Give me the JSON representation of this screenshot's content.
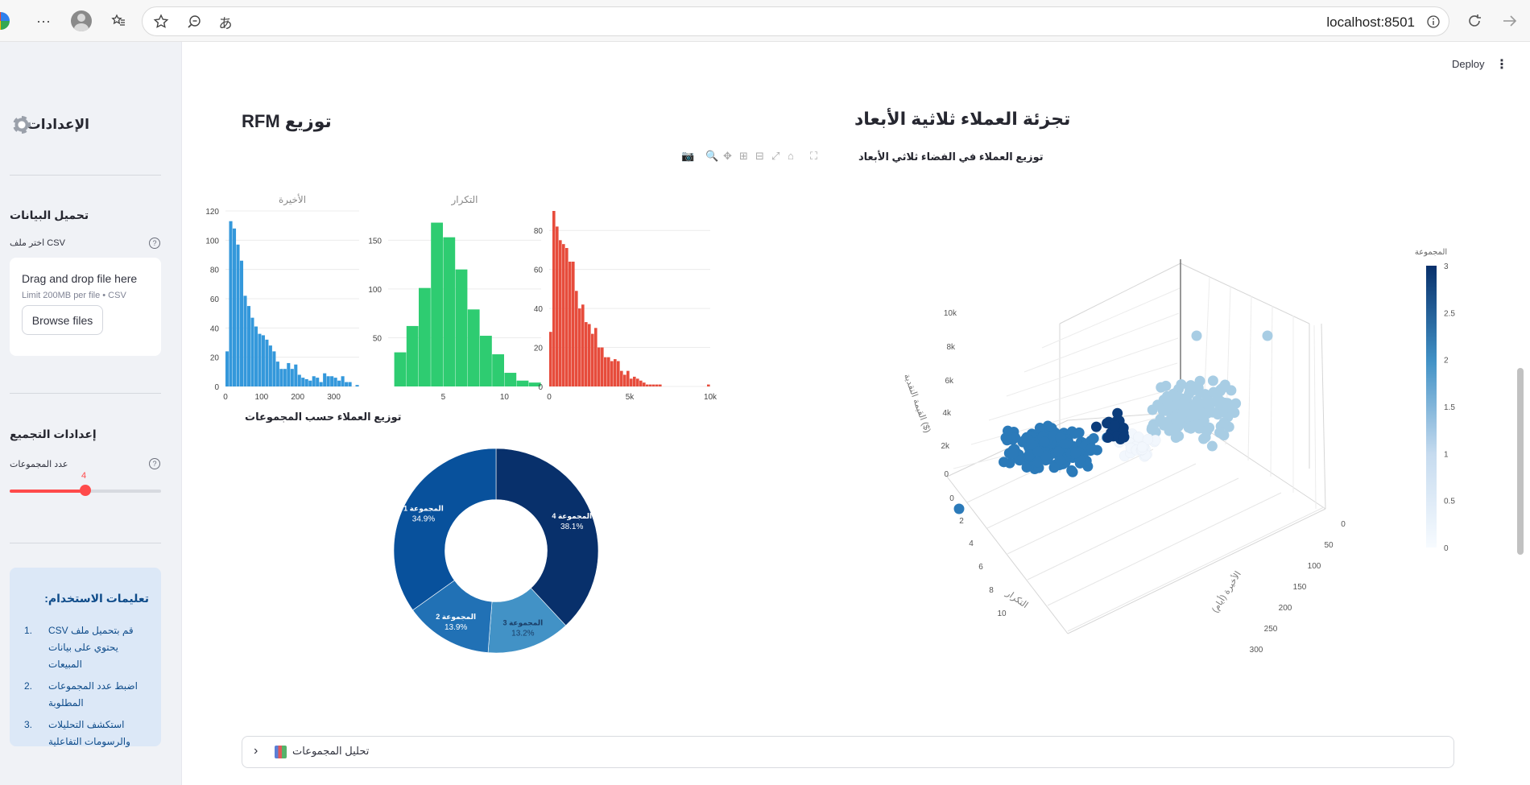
{
  "browser": {
    "url": "localhost:8501",
    "icons": [
      "more-icon",
      "profile-icon",
      "favorites-icon",
      "star-icon",
      "zoom-icon",
      "read-aloud-icon",
      "site-info-icon",
      "refresh-icon",
      "forward-icon"
    ],
    "more_glyph": "···",
    "read_aloud_glyph": "あ"
  },
  "sidebar": {
    "title": "الإعدادات",
    "upload_section": {
      "heading": "تحميل البيانات",
      "label": "اختر ملف CSV",
      "dropzone_text": "Drag and drop file here",
      "limit_text": "Limit 200MB per file • CSV",
      "browse_label": "Browse files"
    },
    "cluster_section": {
      "heading": "إعدادات التجميع",
      "label": "عدد المجموعات",
      "slider_value": "4",
      "slider_fraction": 0.5
    },
    "instructions": {
      "heading": "تعليمات الاستخدام:",
      "items": [
        {
          "num": "1.",
          "text": "قم بتحميل ملف CSV يحتوي على بيانات المبيعات"
        },
        {
          "num": "2.",
          "text": "اضبط عدد المجموعات المطلوبة"
        },
        {
          "num": "3.",
          "text": "استكشف التحليلات والرسومات التفاعلية"
        }
      ]
    }
  },
  "header": {
    "deploy_label": "Deploy",
    "menu_glyph": "⋮"
  },
  "rfm_section": {
    "title": "توزيع RFM"
  },
  "segmentation_section": {
    "title": "تجزئة العملاء ثلاثية الأبعاد"
  },
  "expander": {
    "label": "تحليل المجموعات",
    "chevron": "›"
  },
  "chart_data": [
    {
      "type": "bar",
      "title": "الأخيرة",
      "x": [
        5,
        15,
        25,
        35,
        45,
        55,
        65,
        75,
        85,
        95,
        105,
        115,
        125,
        135,
        145,
        155,
        165,
        175,
        185,
        195,
        205,
        215,
        225,
        235,
        245,
        255,
        265,
        275,
        285,
        295,
        305,
        315,
        325,
        335,
        345,
        355,
        365
      ],
      "values": [
        24,
        113,
        108,
        97,
        86,
        62,
        55,
        47,
        41,
        36,
        35,
        32,
        28,
        24,
        17,
        12,
        12,
        16,
        12,
        15,
        8,
        6,
        5,
        4,
        7,
        6,
        3,
        9,
        7,
        7,
        6,
        4,
        7,
        3,
        3,
        0,
        1
      ],
      "xticks": [
        "0",
        "100",
        "200",
        "300"
      ],
      "yticks": [
        "0",
        "20",
        "40",
        "60",
        "80",
        "100",
        "120"
      ],
      "ylim": [
        0,
        120
      ],
      "xlim": [
        0,
        370
      ],
      "color": "#3498db"
    },
    {
      "type": "bar",
      "title": "التكرار",
      "x": [
        1.5,
        2.5,
        3.5,
        4.5,
        5.5,
        6.5,
        7.5,
        8.5,
        9.5,
        10.5,
        11.5,
        12.5
      ],
      "values": [
        35,
        62,
        101,
        168,
        153,
        120,
        79,
        52,
        33,
        14,
        6,
        4
      ],
      "xticks": [
        "5",
        "10"
      ],
      "yticks": [
        "50",
        "100",
        "150"
      ],
      "ylim": [
        0,
        180
      ],
      "xlim": [
        0.5,
        13
      ],
      "color": "#2ecc71"
    },
    {
      "type": "bar",
      "title": "",
      "x": [
        100,
        300,
        500,
        700,
        900,
        1100,
        1300,
        1500,
        1700,
        1900,
        2100,
        2300,
        2500,
        2700,
        2900,
        3100,
        3300,
        3500,
        3700,
        3900,
        4100,
        4300,
        4500,
        4700,
        4900,
        5100,
        5300,
        5500,
        5700,
        5900,
        6100,
        6300,
        6500,
        6700,
        6900,
        9900
      ],
      "values": [
        28,
        90,
        82,
        75,
        73,
        71,
        64,
        64,
        49,
        40,
        42,
        33,
        32,
        27,
        30,
        20,
        20,
        15,
        15,
        13,
        14,
        13,
        8,
        6,
        8,
        4,
        5,
        4,
        3,
        2,
        1,
        1,
        1,
        1,
        1,
        1
      ],
      "xticks": [
        "0",
        "5k",
        "10k"
      ],
      "yticks": [
        "0",
        "20",
        "40",
        "60",
        "80"
      ],
      "ylim": [
        0,
        90
      ],
      "xlim": [
        0,
        10000
      ],
      "color": "#e74c3c"
    },
    {
      "type": "pie",
      "title": "توزيع العملاء حسب المجموعات",
      "labels": [
        "المجموعة 4",
        "المجموعة 3",
        "المجموعة 2",
        "المجموعة 1"
      ],
      "values": [
        38.1,
        13.2,
        13.9,
        34.9
      ],
      "value_labels": [
        "38.1%",
        "13.2%",
        "13.9%",
        "34.9%"
      ],
      "colors": [
        "#08306b",
        "#4292c6",
        "#2171b5",
        "#08519c"
      ],
      "hole": 0.5
    },
    {
      "type": "scatter",
      "title": "توزيع العملاء في الفضاء ثلاثي الأبعاد",
      "axes": {
        "x": "التكرار",
        "y": "الأخيرة (أيام)",
        "z": "القيمة النقدية ($)"
      },
      "x_ticks": [
        "0",
        "2",
        "4",
        "6",
        "8",
        "10"
      ],
      "y_ticks": [
        "0",
        "50",
        "100",
        "150",
        "200",
        "250",
        "300"
      ],
      "z_ticks": [
        "0",
        "2k",
        "4k",
        "6k",
        "8k",
        "10k"
      ],
      "colorbar": {
        "title": "المجموعة",
        "ticks": [
          "0",
          "0.5",
          "1",
          "1.5",
          "2",
          "2.5",
          "3"
        ],
        "range": [
          0,
          3
        ]
      },
      "clusters": [
        {
          "cluster": 0,
          "color": "#f2f7fd",
          "count": 20
        },
        {
          "cluster": 1,
          "color": "#a8cde4",
          "count": 150
        },
        {
          "cluster": 2,
          "color": "#2b7ab9",
          "count": 170
        },
        {
          "cluster": 3,
          "color": "#0b3c7b",
          "count": 22
        }
      ]
    }
  ]
}
